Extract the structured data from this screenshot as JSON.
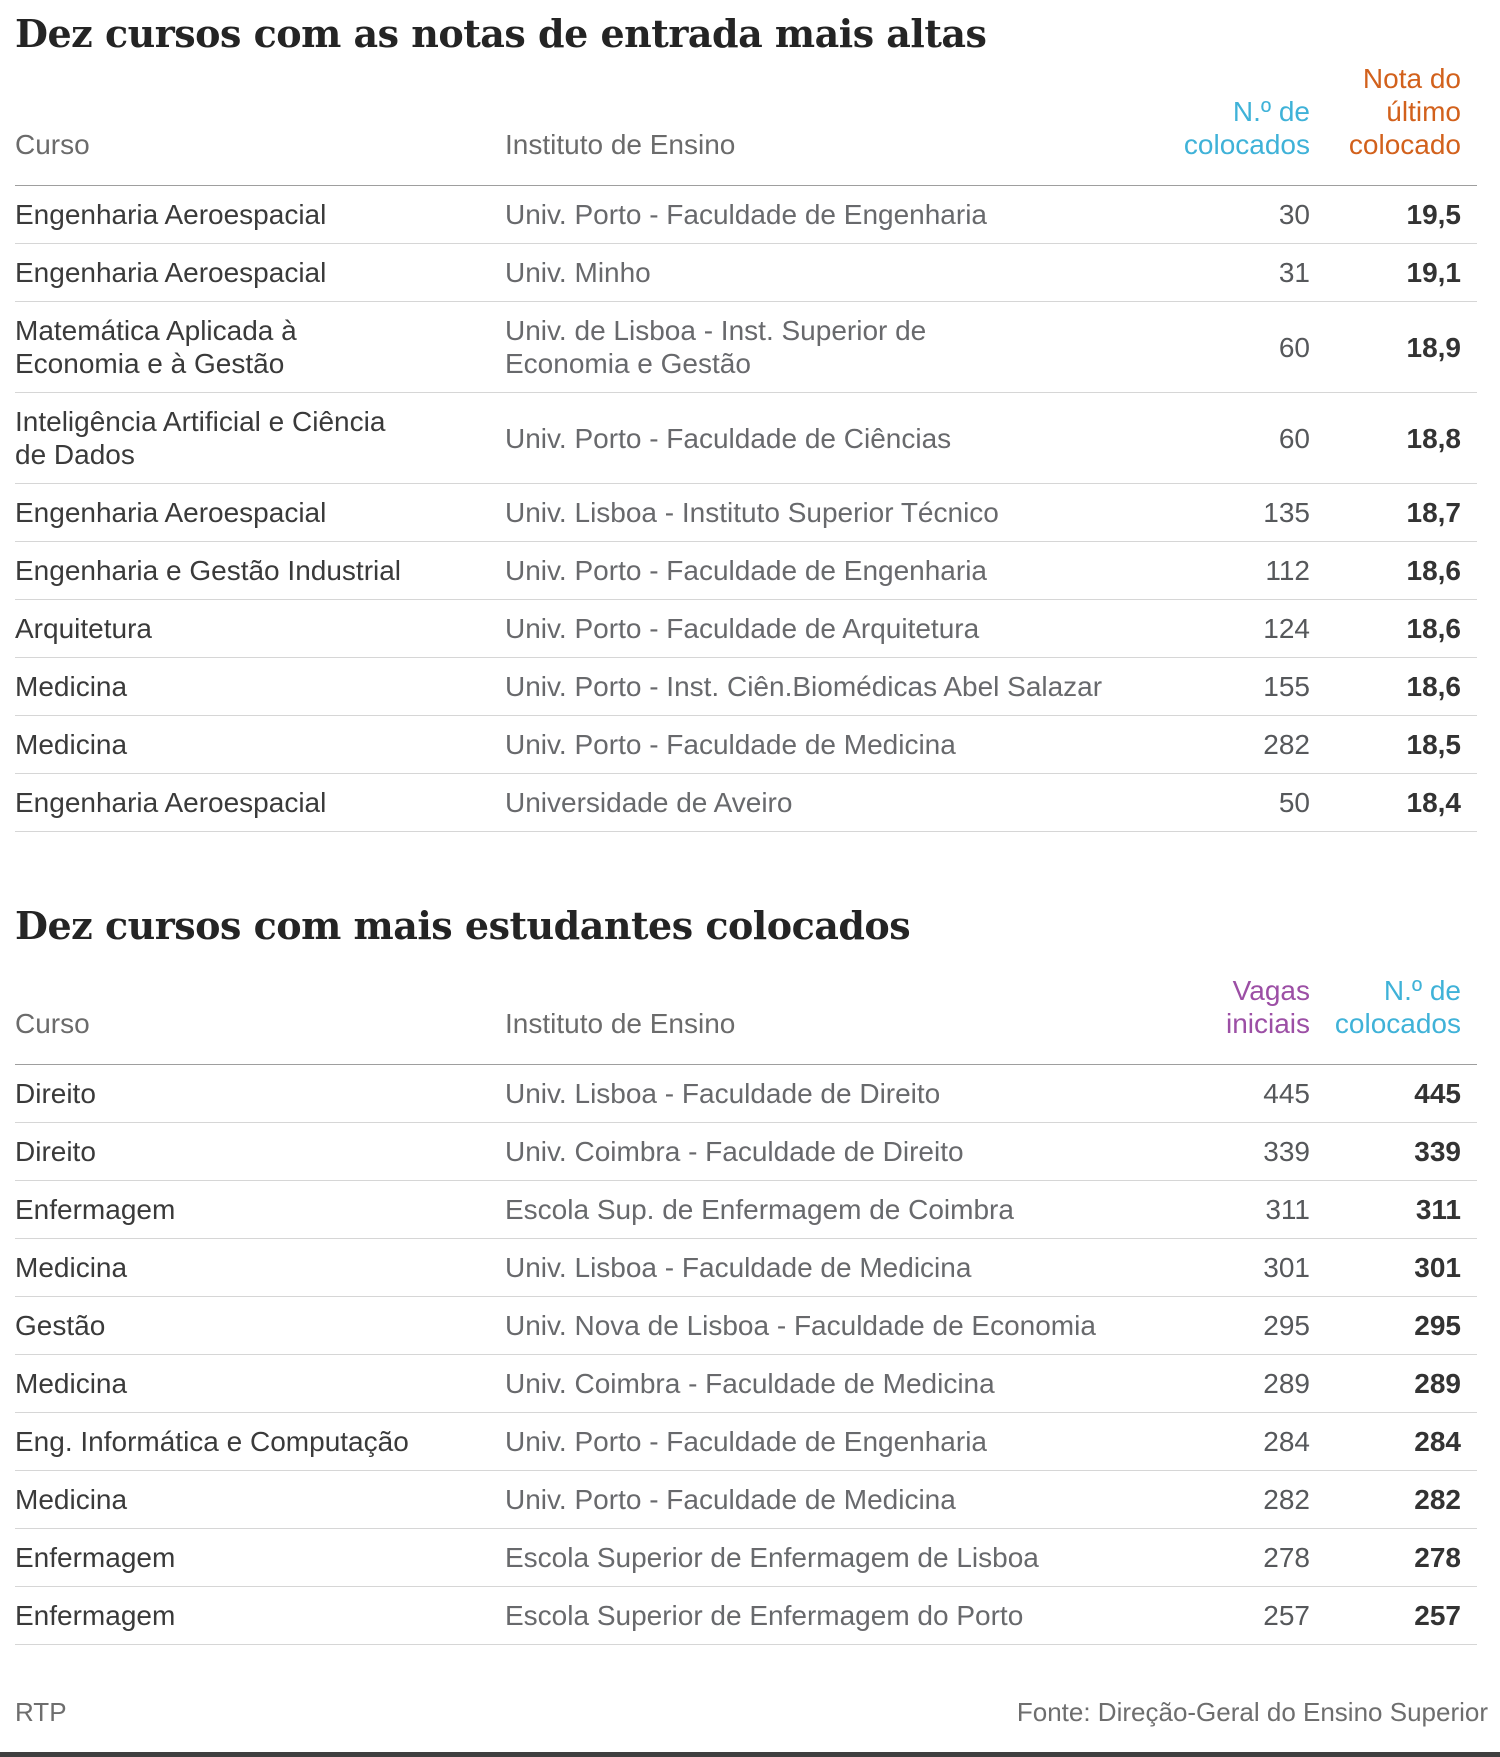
{
  "colors": {
    "blue": "#3fb2d8",
    "orange": "#d2611c",
    "purple": "#9c4fa5"
  },
  "chart_data": [
    {
      "type": "table",
      "title": "Dez cursos com as notas de entrada mais altas",
      "headers": [
        "Curso",
        "Instituto de Ensino",
        "N.º de\ncolocados",
        "Nota do\núltimo\ncolocado"
      ],
      "rows": [
        [
          "Engenharia Aeroespacial",
          "Univ. Porto - Faculdade de Engenharia",
          30,
          "19,5"
        ],
        [
          "Engenharia Aeroespacial",
          "Univ. Minho",
          31,
          "19,1"
        ],
        [
          "Matemática Aplicada à\nEconomia e à Gestão",
          "Univ. de Lisboa - Inst. Superior de\nEconomia e Gestão",
          60,
          "18,9"
        ],
        [
          "Inteligência Artificial e Ciência\nde Dados",
          "Univ. Porto - Faculdade de Ciências",
          60,
          "18,8"
        ],
        [
          "Engenharia Aeroespacial",
          "Univ. Lisboa - Instituto Superior Técnico",
          135,
          "18,7"
        ],
        [
          "Engenharia e Gestão Industrial",
          "Univ. Porto - Faculdade de Engenharia",
          112,
          "18,6"
        ],
        [
          "Arquitetura",
          "Univ. Porto - Faculdade de Arquitetura",
          124,
          "18,6"
        ],
        [
          "Medicina",
          "Univ. Porto - Inst. Ciên.Biomédicas Abel Salazar",
          155,
          "18,6"
        ],
        [
          "Medicina",
          "Univ. Porto - Faculdade de Medicina",
          282,
          "18,5"
        ],
        [
          "Engenharia Aeroespacial",
          "Universidade de Aveiro",
          50,
          "18,4"
        ]
      ]
    },
    {
      "type": "table",
      "title": "Dez cursos com mais estudantes colocados",
      "headers": [
        "Curso",
        "Instituto de Ensino",
        "Vagas\niniciais",
        "N.º de\ncolocados"
      ],
      "rows": [
        [
          "Direito",
          "Univ. Lisboa - Faculdade de Direito",
          445,
          "445"
        ],
        [
          "Direito",
          "Univ. Coimbra - Faculdade de Direito",
          339,
          "339"
        ],
        [
          "Enfermagem",
          "Escola Sup. de Enfermagem de Coimbra",
          311,
          "311"
        ],
        [
          "Medicina",
          "Univ. Lisboa - Faculdade de Medicina",
          301,
          "301"
        ],
        [
          "Gestão",
          "Univ. Nova de Lisboa - Faculdade de Economia",
          295,
          "295"
        ],
        [
          "Medicina",
          "Univ. Coimbra - Faculdade de Medicina",
          289,
          "289"
        ],
        [
          "Eng. Informática e Computação",
          "Univ. Porto - Faculdade de Engenharia",
          284,
          "284"
        ],
        [
          "Medicina",
          "Univ. Porto - Faculdade de Medicina",
          282,
          "282"
        ],
        [
          "Enfermagem",
          "Escola Superior de Enfermagem de Lisboa",
          278,
          "278"
        ],
        [
          "Enfermagem",
          "Escola Superior de Enfermagem do Porto",
          257,
          "257"
        ]
      ]
    }
  ],
  "footer": {
    "left": "RTP",
    "right": "Fonte: Direção-Geral do Ensino Superior"
  }
}
